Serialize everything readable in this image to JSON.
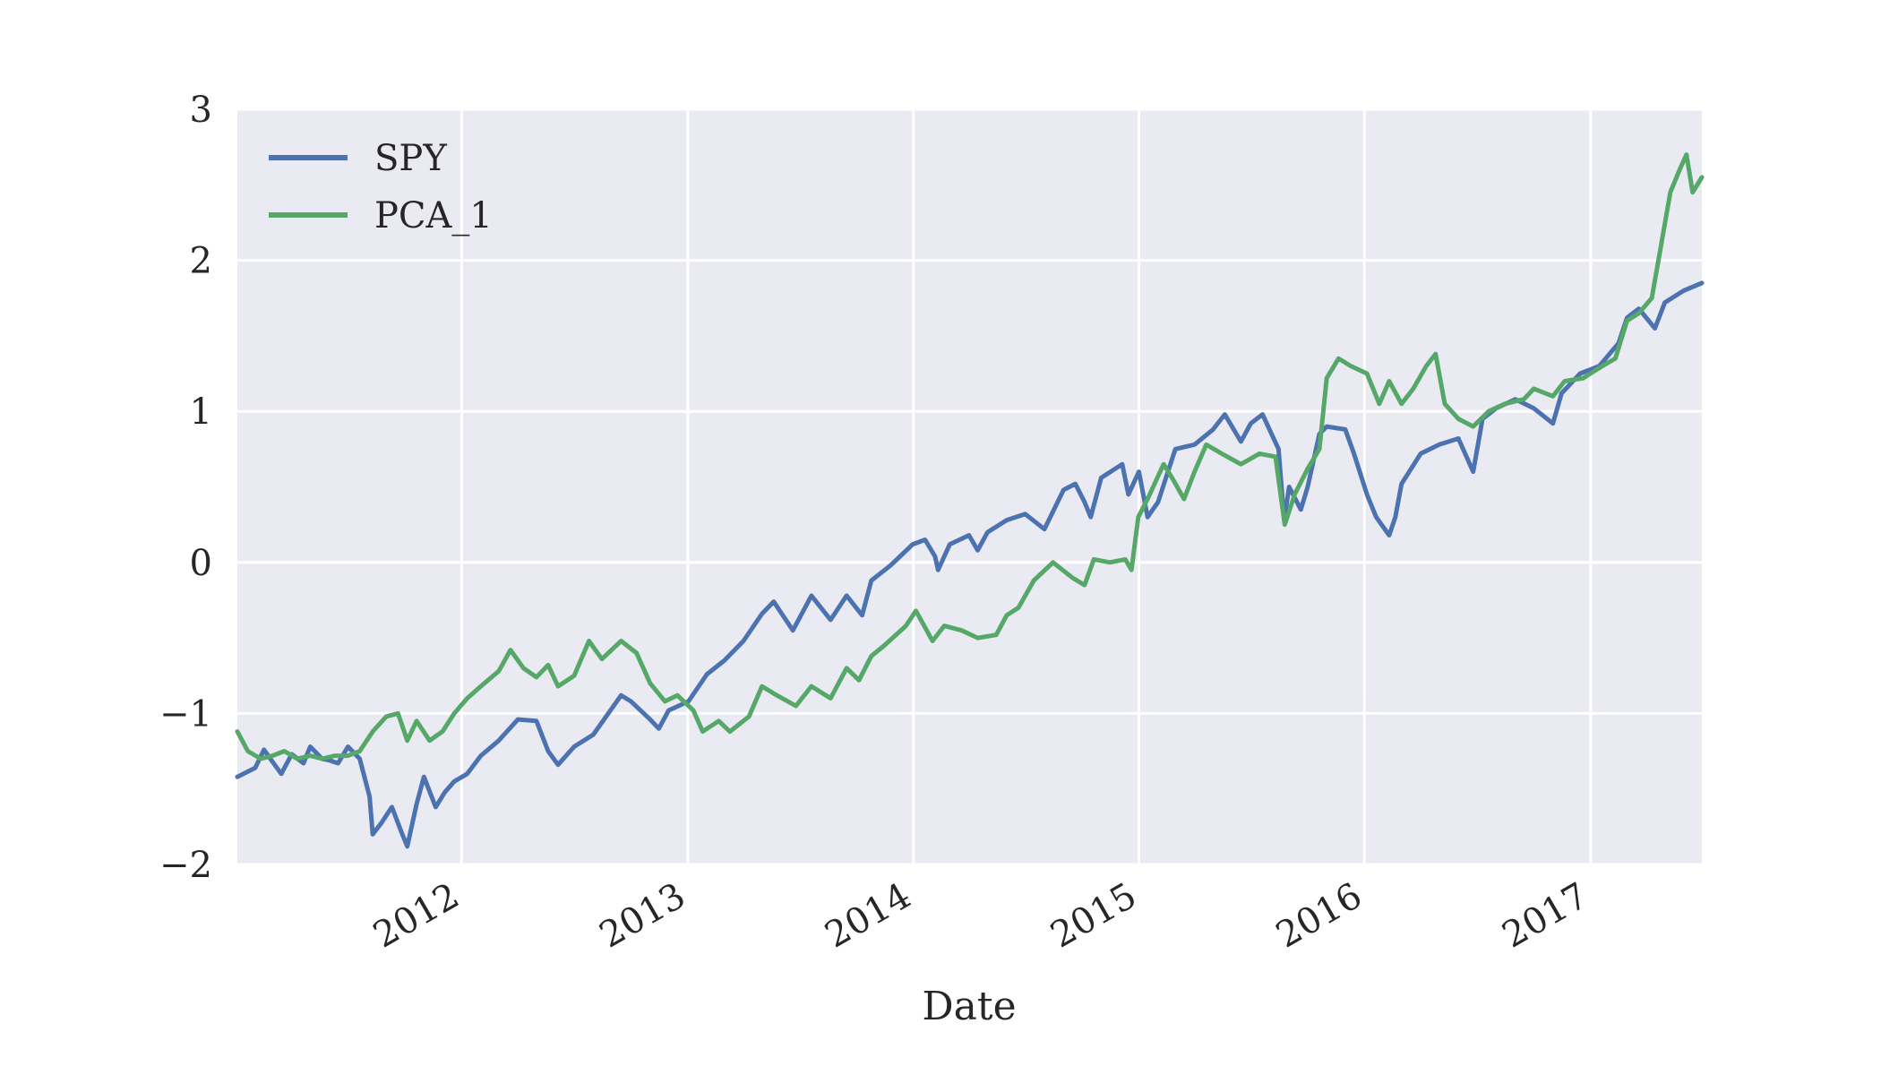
{
  "chart_data": {
    "type": "line",
    "title": "",
    "xlabel": "Date",
    "ylabel": "",
    "xlim": [
      "2011-01-03",
      "2017-06-30"
    ],
    "ylim": [
      -2,
      3
    ],
    "x_ticks": [
      "2012",
      "2013",
      "2014",
      "2015",
      "2016",
      "2017"
    ],
    "y_ticks": [
      3,
      2,
      1,
      0,
      -1,
      -2
    ],
    "y_tick_labels": [
      "3",
      "2",
      "1",
      "0",
      "−1",
      "−2"
    ],
    "grid": true,
    "background": "#EAEAF2",
    "legend_position": "top-left",
    "series": [
      {
        "name": "SPY",
        "color": "#4C72B0",
        "points": [
          [
            "2011-01-03",
            -1.42
          ],
          [
            "2011-02-01",
            -1.36
          ],
          [
            "2011-02-15",
            -1.24
          ],
          [
            "2011-03-01",
            -1.32
          ],
          [
            "2011-03-15",
            -1.4
          ],
          [
            "2011-04-01",
            -1.27
          ],
          [
            "2011-04-20",
            -1.33
          ],
          [
            "2011-05-01",
            -1.22
          ],
          [
            "2011-05-20",
            -1.3
          ],
          [
            "2011-06-01",
            -1.31
          ],
          [
            "2011-06-15",
            -1.33
          ],
          [
            "2011-07-01",
            -1.22
          ],
          [
            "2011-07-20",
            -1.3
          ],
          [
            "2011-08-05",
            -1.55
          ],
          [
            "2011-08-10",
            -1.8
          ],
          [
            "2011-08-25",
            -1.72
          ],
          [
            "2011-09-10",
            -1.62
          ],
          [
            "2011-09-25",
            -1.78
          ],
          [
            "2011-10-05",
            -1.88
          ],
          [
            "2011-10-20",
            -1.6
          ],
          [
            "2011-11-01",
            -1.42
          ],
          [
            "2011-11-20",
            -1.62
          ],
          [
            "2011-12-05",
            -1.52
          ],
          [
            "2011-12-20",
            -1.45
          ],
          [
            "2012-01-10",
            -1.4
          ],
          [
            "2012-02-01",
            -1.28
          ],
          [
            "2012-03-01",
            -1.18
          ],
          [
            "2012-04-01",
            -1.04
          ],
          [
            "2012-05-01",
            -1.05
          ],
          [
            "2012-05-20",
            -1.25
          ],
          [
            "2012-06-05",
            -1.34
          ],
          [
            "2012-07-01",
            -1.22
          ],
          [
            "2012-08-01",
            -1.14
          ],
          [
            "2012-09-15",
            -0.88
          ],
          [
            "2012-10-01",
            -0.92
          ],
          [
            "2012-11-01",
            -1.04
          ],
          [
            "2012-11-15",
            -1.1
          ],
          [
            "2012-12-01",
            -0.98
          ],
          [
            "2013-01-02",
            -0.92
          ],
          [
            "2013-02-01",
            -0.74
          ],
          [
            "2013-03-01",
            -0.65
          ],
          [
            "2013-04-01",
            -0.52
          ],
          [
            "2013-05-01",
            -0.34
          ],
          [
            "2013-05-20",
            -0.26
          ],
          [
            "2013-06-20",
            -0.45
          ],
          [
            "2013-07-20",
            -0.22
          ],
          [
            "2013-08-20",
            -0.38
          ],
          [
            "2013-09-15",
            -0.22
          ],
          [
            "2013-10-10",
            -0.35
          ],
          [
            "2013-10-25",
            -0.12
          ],
          [
            "2013-11-25",
            -0.02
          ],
          [
            "2013-12-31",
            0.12
          ],
          [
            "2014-01-20",
            0.15
          ],
          [
            "2014-02-05",
            0.04
          ],
          [
            "2014-02-10",
            -0.05
          ],
          [
            "2014-03-01",
            0.12
          ],
          [
            "2014-04-01",
            0.18
          ],
          [
            "2014-04-15",
            0.08
          ],
          [
            "2014-05-01",
            0.2
          ],
          [
            "2014-06-01",
            0.28
          ],
          [
            "2014-07-01",
            0.32
          ],
          [
            "2014-08-01",
            0.22
          ],
          [
            "2014-09-01",
            0.48
          ],
          [
            "2014-09-20",
            0.52
          ],
          [
            "2014-10-05",
            0.4
          ],
          [
            "2014-10-15",
            0.3
          ],
          [
            "2014-11-01",
            0.56
          ],
          [
            "2014-12-05",
            0.65
          ],
          [
            "2014-12-15",
            0.45
          ],
          [
            "2015-01-01",
            0.6
          ],
          [
            "2015-01-15",
            0.3
          ],
          [
            "2015-02-01",
            0.4
          ],
          [
            "2015-03-01",
            0.75
          ],
          [
            "2015-04-01",
            0.78
          ],
          [
            "2015-05-01",
            0.88
          ],
          [
            "2015-05-20",
            0.98
          ],
          [
            "2015-06-15",
            0.8
          ],
          [
            "2015-07-01",
            0.92
          ],
          [
            "2015-07-20",
            0.98
          ],
          [
            "2015-08-15",
            0.75
          ],
          [
            "2015-08-24",
            0.28
          ],
          [
            "2015-09-01",
            0.5
          ],
          [
            "2015-09-20",
            0.35
          ],
          [
            "2015-10-01",
            0.5
          ],
          [
            "2015-10-20",
            0.85
          ],
          [
            "2015-11-01",
            0.9
          ],
          [
            "2015-12-01",
            0.88
          ],
          [
            "2015-12-15",
            0.72
          ],
          [
            "2016-01-05",
            0.45
          ],
          [
            "2016-01-20",
            0.3
          ],
          [
            "2016-02-10",
            0.18
          ],
          [
            "2016-02-20",
            0.3
          ],
          [
            "2016-03-01",
            0.52
          ],
          [
            "2016-04-01",
            0.72
          ],
          [
            "2016-05-01",
            0.78
          ],
          [
            "2016-06-01",
            0.82
          ],
          [
            "2016-06-25",
            0.6
          ],
          [
            "2016-07-10",
            0.95
          ],
          [
            "2016-08-01",
            1.02
          ],
          [
            "2016-09-01",
            1.08
          ],
          [
            "2016-10-01",
            1.02
          ],
          [
            "2016-11-01",
            0.92
          ],
          [
            "2016-11-15",
            1.12
          ],
          [
            "2016-12-15",
            1.25
          ],
          [
            "2017-01-15",
            1.3
          ],
          [
            "2017-02-15",
            1.45
          ],
          [
            "2017-03-01",
            1.62
          ],
          [
            "2017-03-20",
            1.68
          ],
          [
            "2017-04-15",
            1.55
          ],
          [
            "2017-05-01",
            1.72
          ],
          [
            "2017-06-01",
            1.8
          ],
          [
            "2017-06-30",
            1.85
          ]
        ]
      },
      {
        "name": "PCA_1",
        "color": "#55A868",
        "points": [
          [
            "2011-01-03",
            -1.12
          ],
          [
            "2011-01-20",
            -1.25
          ],
          [
            "2011-02-10",
            -1.3
          ],
          [
            "2011-03-01",
            -1.28
          ],
          [
            "2011-03-20",
            -1.25
          ],
          [
            "2011-04-10",
            -1.3
          ],
          [
            "2011-05-01",
            -1.28
          ],
          [
            "2011-05-20",
            -1.3
          ],
          [
            "2011-06-10",
            -1.28
          ],
          [
            "2011-07-01",
            -1.28
          ],
          [
            "2011-07-20",
            -1.25
          ],
          [
            "2011-08-10",
            -1.12
          ],
          [
            "2011-09-01",
            -1.02
          ],
          [
            "2011-09-20",
            -1.0
          ],
          [
            "2011-10-05",
            -1.18
          ],
          [
            "2011-10-20",
            -1.05
          ],
          [
            "2011-11-10",
            -1.18
          ],
          [
            "2011-12-01",
            -1.12
          ],
          [
            "2011-12-20",
            -1.0
          ],
          [
            "2012-01-10",
            -0.9
          ],
          [
            "2012-02-01",
            -0.82
          ],
          [
            "2012-03-01",
            -0.72
          ],
          [
            "2012-03-20",
            -0.58
          ],
          [
            "2012-04-10",
            -0.7
          ],
          [
            "2012-05-01",
            -0.76
          ],
          [
            "2012-05-20",
            -0.68
          ],
          [
            "2012-06-05",
            -0.82
          ],
          [
            "2012-07-01",
            -0.75
          ],
          [
            "2012-07-25",
            -0.52
          ],
          [
            "2012-08-15",
            -0.64
          ],
          [
            "2012-09-15",
            -0.52
          ],
          [
            "2012-10-10",
            -0.6
          ],
          [
            "2012-11-01",
            -0.8
          ],
          [
            "2012-11-25",
            -0.92
          ],
          [
            "2012-12-15",
            -0.88
          ],
          [
            "2013-01-10",
            -0.98
          ],
          [
            "2013-01-25",
            -1.12
          ],
          [
            "2013-02-20",
            -1.05
          ],
          [
            "2013-03-10",
            -1.12
          ],
          [
            "2013-04-10",
            -1.02
          ],
          [
            "2013-05-01",
            -0.82
          ],
          [
            "2013-05-25",
            -0.88
          ],
          [
            "2013-06-25",
            -0.95
          ],
          [
            "2013-07-20",
            -0.82
          ],
          [
            "2013-08-20",
            -0.9
          ],
          [
            "2013-09-15",
            -0.7
          ],
          [
            "2013-10-05",
            -0.78
          ],
          [
            "2013-10-25",
            -0.62
          ],
          [
            "2013-11-15",
            -0.55
          ],
          [
            "2013-12-20",
            -0.42
          ],
          [
            "2014-01-05",
            -0.32
          ],
          [
            "2014-02-01",
            -0.52
          ],
          [
            "2014-02-20",
            -0.42
          ],
          [
            "2014-03-20",
            -0.45
          ],
          [
            "2014-04-15",
            -0.5
          ],
          [
            "2014-05-15",
            -0.48
          ],
          [
            "2014-06-01",
            -0.35
          ],
          [
            "2014-06-20",
            -0.3
          ],
          [
            "2014-07-15",
            -0.12
          ],
          [
            "2014-08-15",
            0.0
          ],
          [
            "2014-09-15",
            -0.1
          ],
          [
            "2014-10-05",
            -0.15
          ],
          [
            "2014-10-20",
            0.02
          ],
          [
            "2014-11-15",
            0.0
          ],
          [
            "2014-12-10",
            0.02
          ],
          [
            "2014-12-20",
            -0.05
          ],
          [
            "2014-12-31",
            0.3
          ],
          [
            "2015-01-15",
            0.42
          ],
          [
            "2015-02-10",
            0.65
          ],
          [
            "2015-02-25",
            0.55
          ],
          [
            "2015-03-15",
            0.42
          ],
          [
            "2015-04-01",
            0.6
          ],
          [
            "2015-04-20",
            0.78
          ],
          [
            "2015-05-15",
            0.72
          ],
          [
            "2015-06-15",
            0.65
          ],
          [
            "2015-07-15",
            0.72
          ],
          [
            "2015-08-10",
            0.7
          ],
          [
            "2015-08-25",
            0.25
          ],
          [
            "2015-09-10",
            0.45
          ],
          [
            "2015-10-01",
            0.62
          ],
          [
            "2015-10-20",
            0.75
          ],
          [
            "2015-11-01",
            1.22
          ],
          [
            "2015-11-20",
            1.35
          ],
          [
            "2015-12-10",
            1.3
          ],
          [
            "2016-01-05",
            1.25
          ],
          [
            "2016-01-25",
            1.05
          ],
          [
            "2016-02-10",
            1.2
          ],
          [
            "2016-03-01",
            1.05
          ],
          [
            "2016-03-20",
            1.15
          ],
          [
            "2016-04-10",
            1.3
          ],
          [
            "2016-04-25",
            1.38
          ],
          [
            "2016-05-10",
            1.05
          ],
          [
            "2016-06-01",
            0.95
          ],
          [
            "2016-06-25",
            0.9
          ],
          [
            "2016-07-20",
            1.0
          ],
          [
            "2016-08-15",
            1.05
          ],
          [
            "2016-09-15",
            1.08
          ],
          [
            "2016-10-01",
            1.15
          ],
          [
            "2016-11-01",
            1.1
          ],
          [
            "2016-11-20",
            1.2
          ],
          [
            "2016-12-20",
            1.22
          ],
          [
            "2017-01-20",
            1.3
          ],
          [
            "2017-02-10",
            1.35
          ],
          [
            "2017-03-01",
            1.6
          ],
          [
            "2017-03-20",
            1.65
          ],
          [
            "2017-04-10",
            1.75
          ],
          [
            "2017-04-25",
            2.1
          ],
          [
            "2017-05-10",
            2.45
          ],
          [
            "2017-05-25",
            2.6
          ],
          [
            "2017-06-05",
            2.7
          ],
          [
            "2017-06-15",
            2.45
          ],
          [
            "2017-06-30",
            2.55
          ]
        ]
      }
    ]
  }
}
